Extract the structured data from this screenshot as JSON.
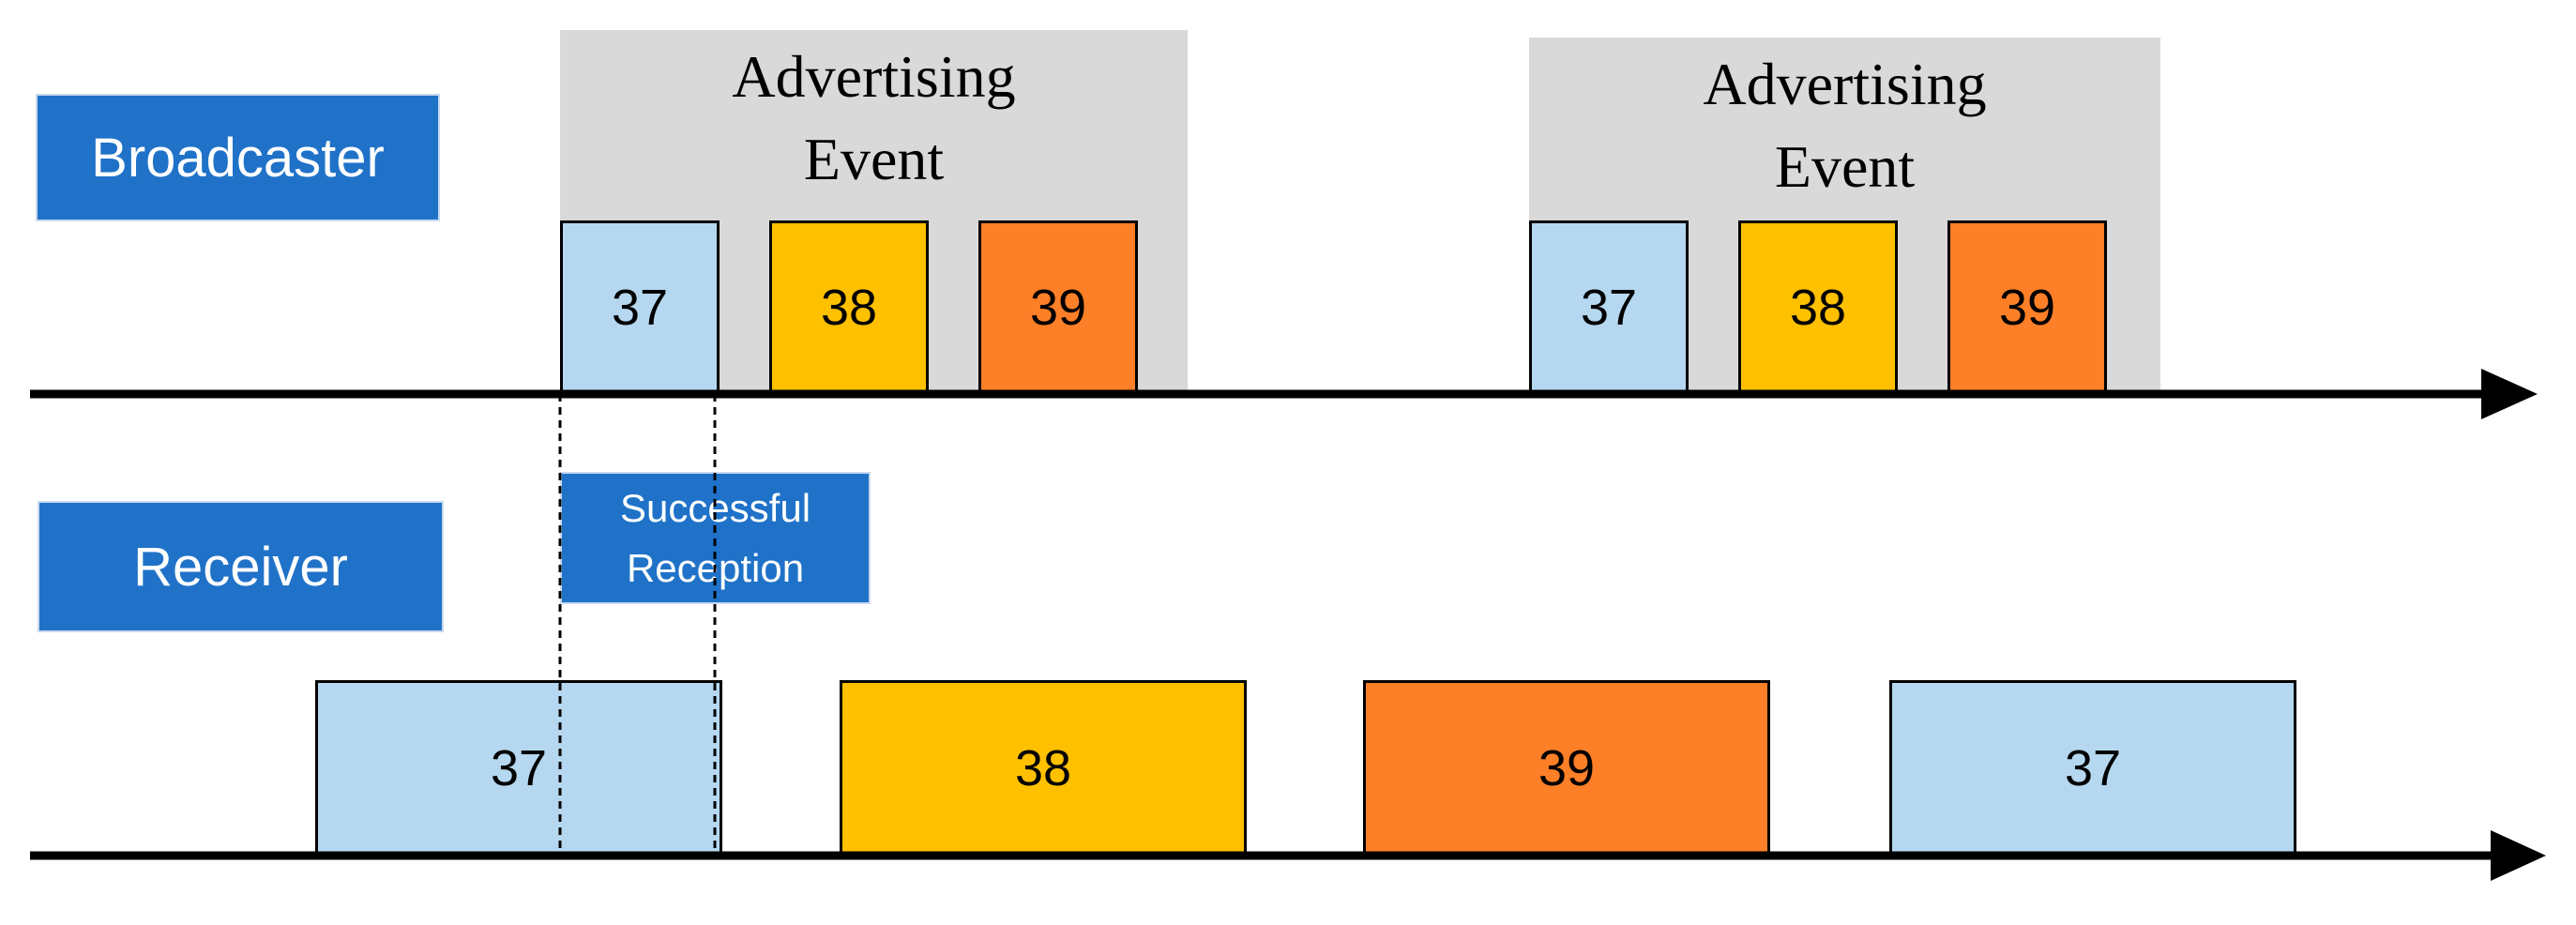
{
  "broadcaster": {
    "label": "Broadcaster",
    "events": [
      {
        "title": "Advertising Event",
        "channels": [
          37,
          38,
          39
        ]
      },
      {
        "title": "Advertising Event",
        "channels": [
          37,
          38,
          39
        ]
      }
    ]
  },
  "reception_note": "Successful Reception",
  "receiver": {
    "label": "Receiver",
    "channels": [
      37,
      38,
      39,
      37
    ]
  }
}
